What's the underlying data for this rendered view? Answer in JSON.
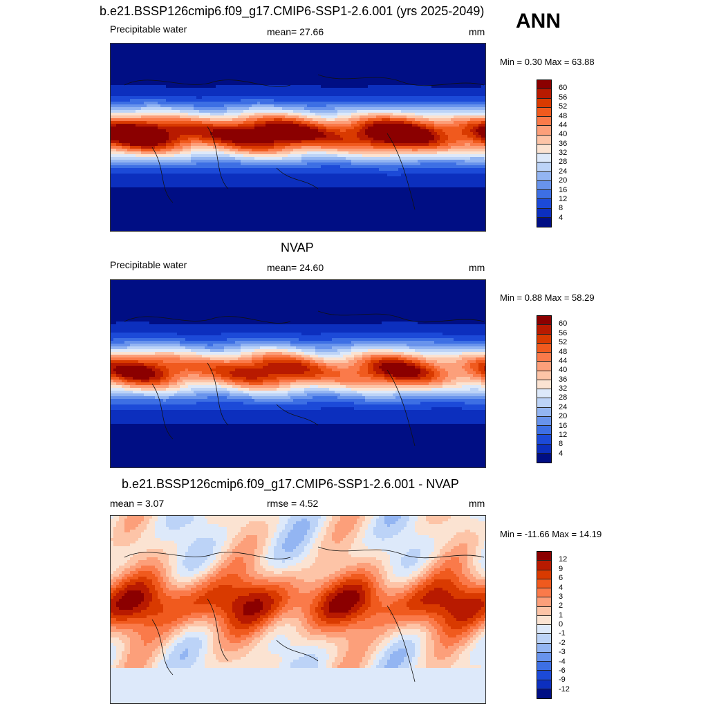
{
  "header": {
    "title": "b.e21.BSSP126cmip6.f09_g17.CMIP6-SSP1-2.6.001 (yrs 2025-2049)",
    "season": "ANN"
  },
  "panels": [
    {
      "id": "model",
      "title": "",
      "left_label": "Precipitable water",
      "center_label": "mean=  27.66",
      "units": "mm",
      "minmax": "Min =   0.30 Max =  63.88",
      "colorbar": {
        "ticks": [
          "60",
          "56",
          "52",
          "48",
          "44",
          "40",
          "36",
          "32",
          "28",
          "24",
          "20",
          "16",
          "12",
          "8",
          "4"
        ],
        "colors": [
          "#8b0000",
          "#b81a00",
          "#d93a00",
          "#f05a1e",
          "#fa7a4a",
          "#fc9f7a",
          "#fdc4a7",
          "#fbe3d2",
          "#dde9fa",
          "#bcd3f7",
          "#93b5f2",
          "#6893ec",
          "#3d6fe4",
          "#1c4ad8",
          "#0c2fbe",
          "#000e84"
        ]
      },
      "field": {
        "lat_amp": [
          0.3,
          1.0
        ],
        "base": "pw"
      }
    },
    {
      "id": "obs",
      "title": "NVAP",
      "left_label": "Precipitable water",
      "center_label": "mean=  24.60",
      "units": "mm",
      "minmax": "Min =   0.88 Max =  58.29",
      "colorbar": {
        "ticks": [
          "60",
          "56",
          "52",
          "48",
          "44",
          "40",
          "36",
          "32",
          "28",
          "24",
          "20",
          "16",
          "12",
          "8",
          "4"
        ],
        "colors": [
          "#8b0000",
          "#b81a00",
          "#d93a00",
          "#f05a1e",
          "#fa7a4a",
          "#fc9f7a",
          "#fdc4a7",
          "#fbe3d2",
          "#dde9fa",
          "#bcd3f7",
          "#93b5f2",
          "#6893ec",
          "#3d6fe4",
          "#1c4ad8",
          "#0c2fbe",
          "#000e84"
        ]
      },
      "field": {
        "lat_amp": [
          0.3,
          0.85
        ],
        "base": "pw"
      }
    },
    {
      "id": "diff",
      "title": "b.e21.BSSP126cmip6.f09_g17.CMIP6-SSP1-2.6.001 - NVAP",
      "left_label": "mean =   3.07",
      "center_label": "rmse =   4.52",
      "units": "mm",
      "minmax": "Min = -11.66 Max =  14.19",
      "colorbar": {
        "ticks": [
          "12",
          "9",
          "6",
          "4",
          "3",
          "2",
          "1",
          "0",
          "-1",
          "-2",
          "-3",
          "-4",
          "-6",
          "-9",
          "-12"
        ],
        "colors": [
          "#8b0000",
          "#b81a00",
          "#d93a00",
          "#f05a1e",
          "#fa7a4a",
          "#fc9f7a",
          "#fdc4a7",
          "#fbe3d2",
          "#dde9fa",
          "#bcd3f7",
          "#93b5f2",
          "#6893ec",
          "#3d6fe4",
          "#1c4ad8",
          "#0c2fbe",
          "#000e84"
        ]
      },
      "field": {
        "lat_amp": [
          0.55,
          0.75
        ],
        "base": "diff"
      }
    }
  ]
}
